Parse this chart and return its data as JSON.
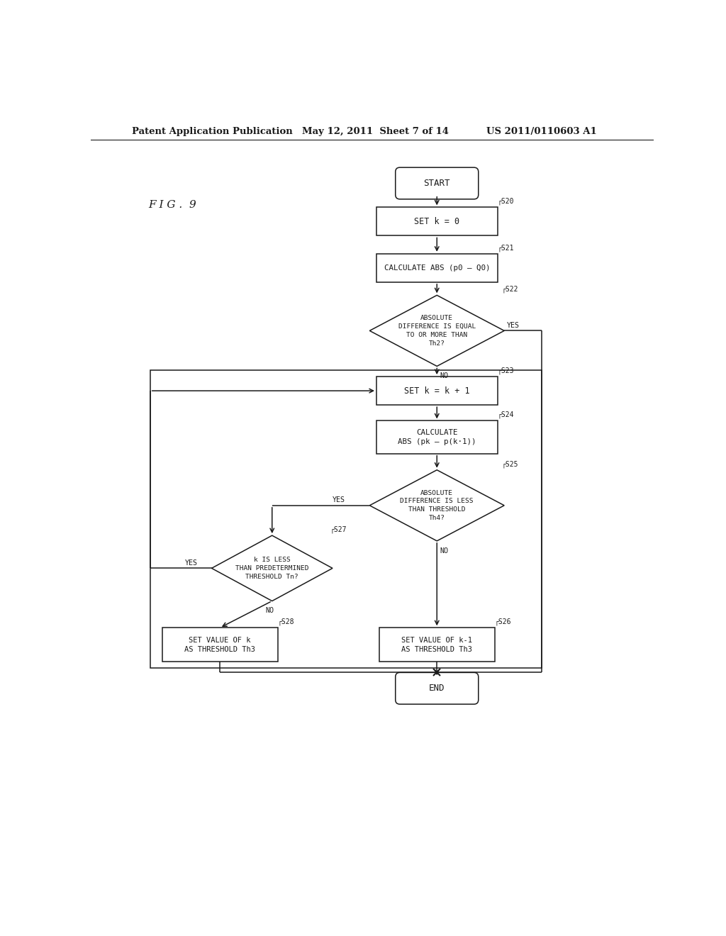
{
  "title_left": "Patent Application Publication",
  "title_center": "May 12, 2011  Sheet 7 of 14",
  "title_right": "US 2011/0110603 A1",
  "fig_label": "F I G .  9",
  "background_color": "#ffffff",
  "line_color": "#1a1a1a",
  "text_color": "#1a1a1a"
}
